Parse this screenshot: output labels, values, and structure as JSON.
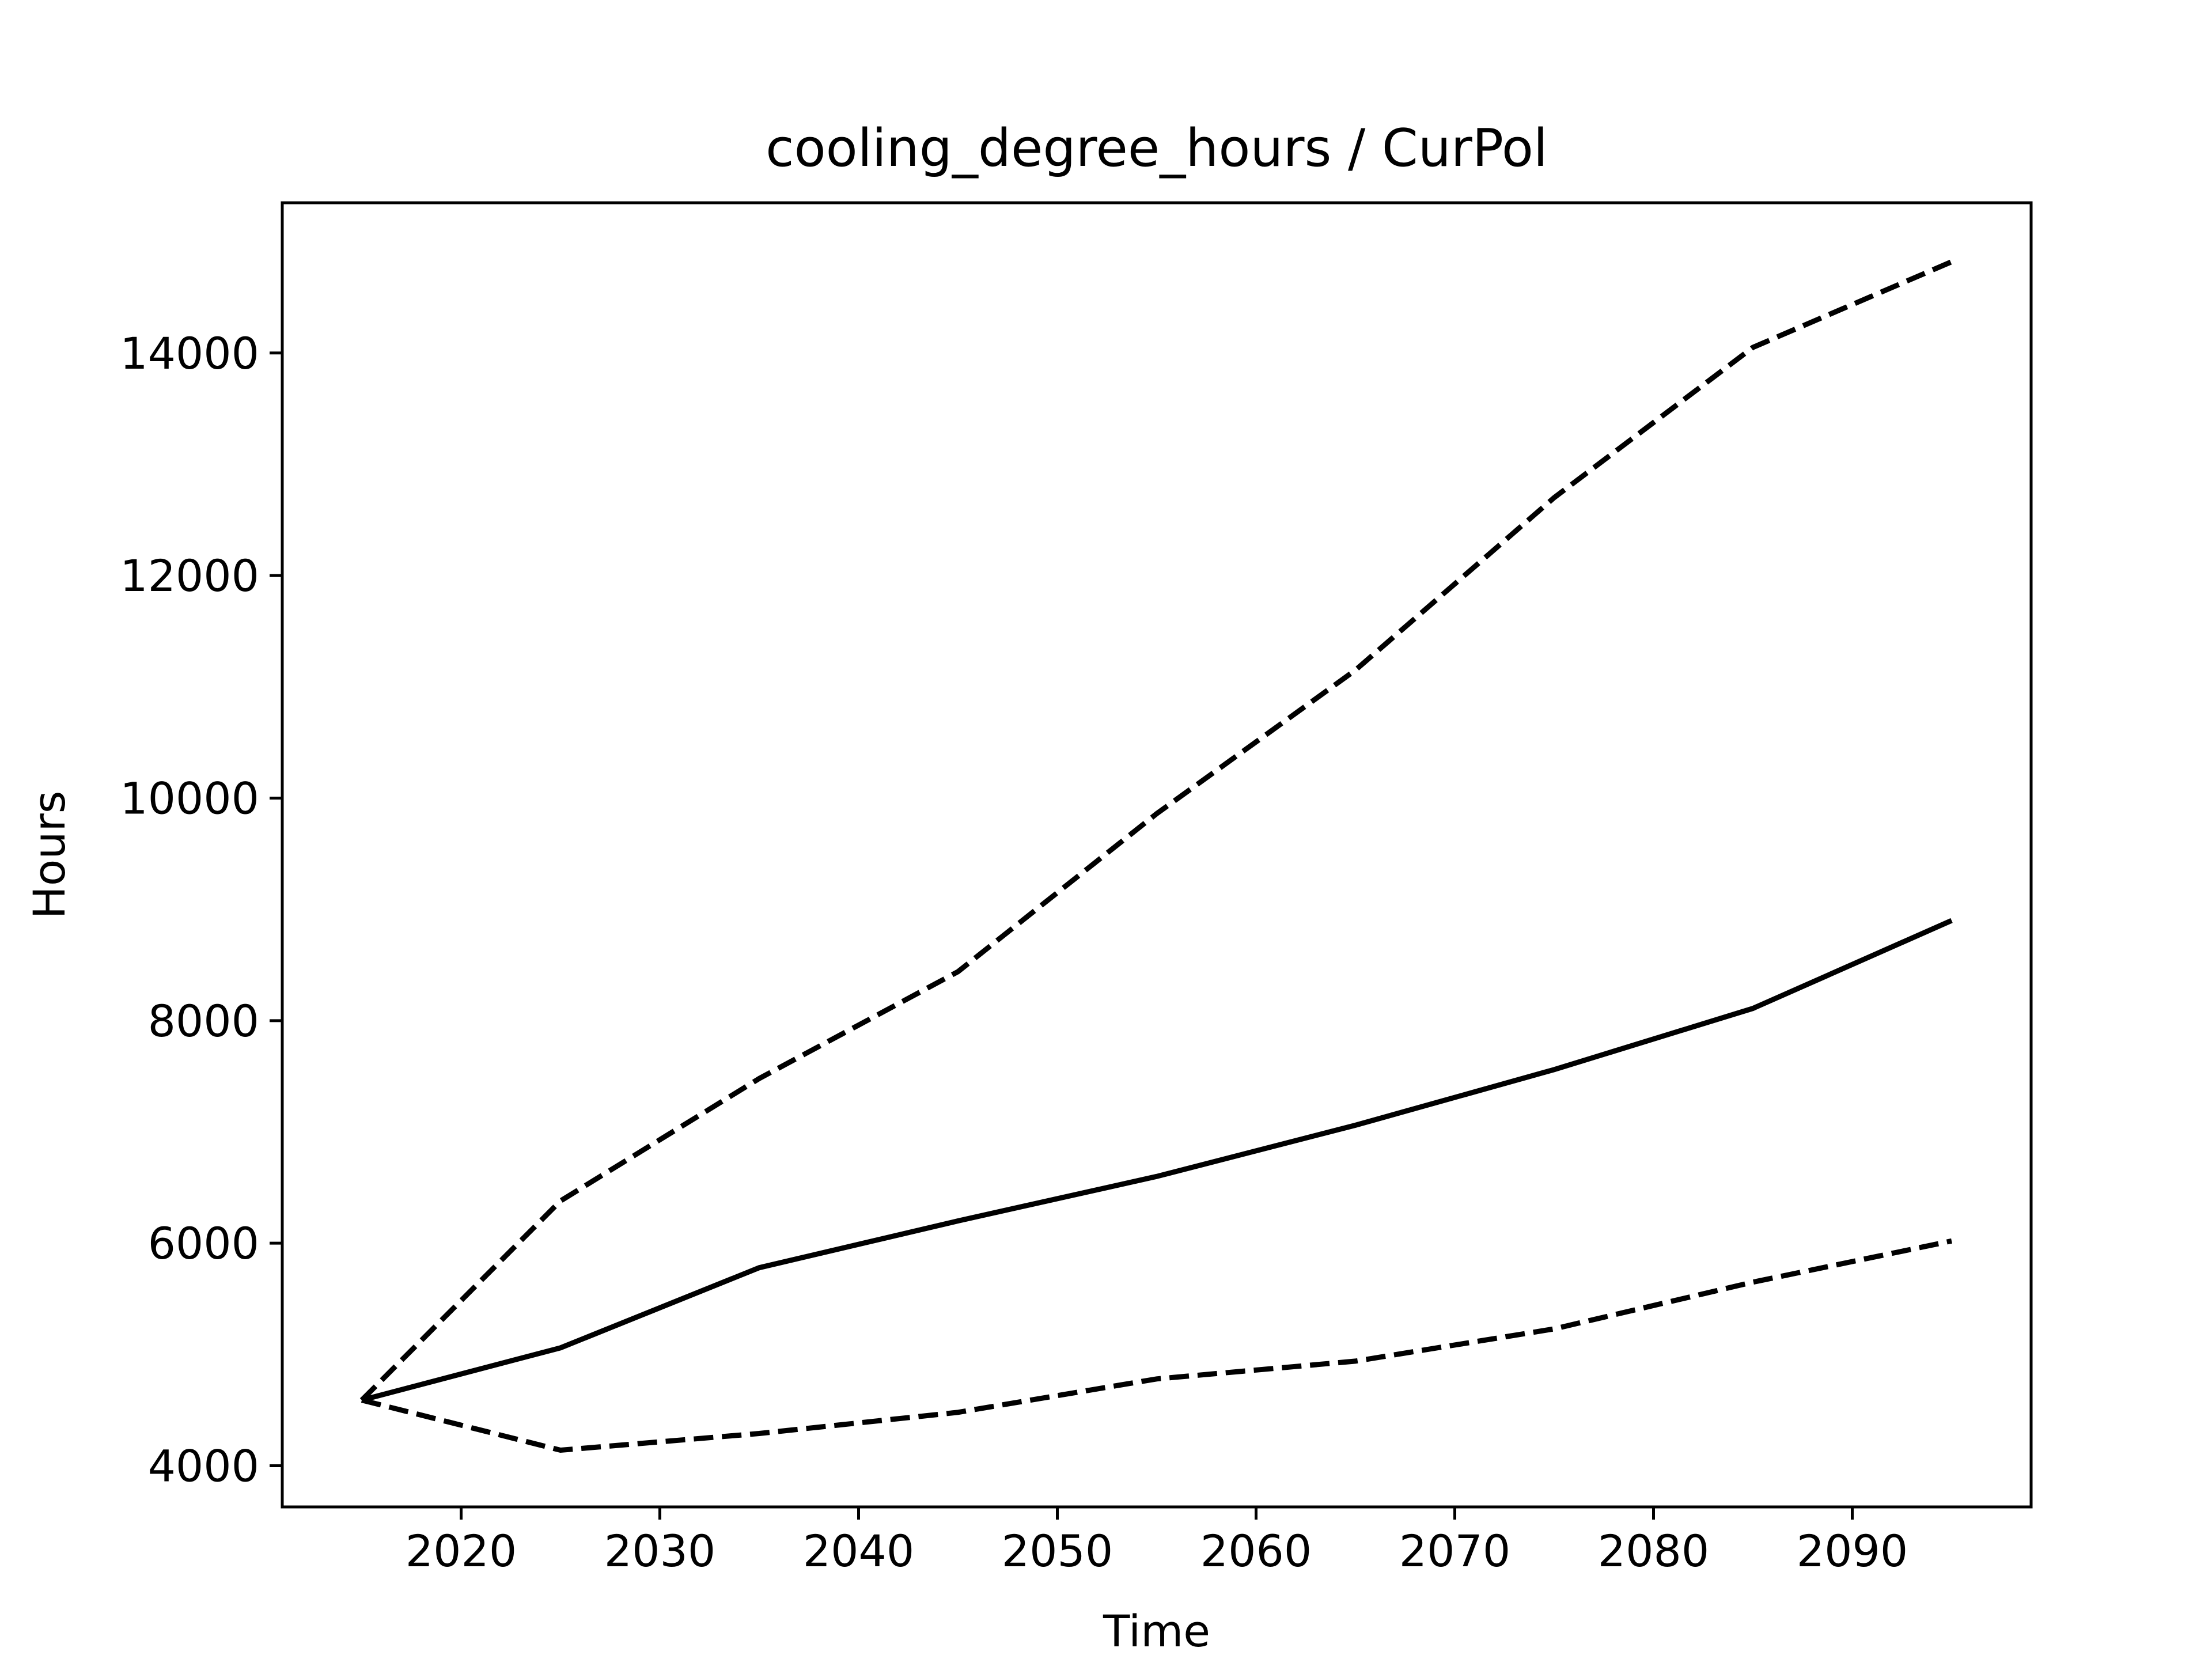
{
  "chart_data": {
    "type": "line",
    "title": "cooling_degree_hours / CurPol",
    "xlabel": "Time",
    "ylabel": "Hours",
    "x": [
      2015,
      2025,
      2035,
      2045,
      2055,
      2065,
      2075,
      2085,
      2095
    ],
    "series": [
      {
        "values": [
          4590,
          5060,
          5780,
          6200,
          6600,
          7060,
          7560,
          8110,
          8900
        ],
        "style": "solid",
        "color": "#000000"
      },
      {
        "values": [
          4590,
          6380,
          7480,
          8440,
          9860,
          11150,
          12700,
          14050,
          14820
        ],
        "style": "dashed",
        "color": "#000000"
      },
      {
        "values": [
          4590,
          4140,
          4290,
          4480,
          4780,
          4940,
          5230,
          5650,
          6020
        ],
        "style": "dashed",
        "color": "#000000"
      }
    ],
    "xticks": [
      2020,
      2030,
      2040,
      2050,
      2060,
      2070,
      2080,
      2090
    ],
    "xtick_labels": [
      "2020",
      "2030",
      "2040",
      "2050",
      "2060",
      "2070",
      "2080",
      "2090"
    ],
    "yticks": [
      4000,
      6000,
      8000,
      10000,
      12000,
      14000
    ],
    "ytick_labels": [
      "4000",
      "6000",
      "8000",
      "10000",
      "12000",
      "14000"
    ],
    "xlim": [
      2011,
      2099
    ],
    "ylim": [
      3630,
      15350
    ],
    "grid": false,
    "legend": "none"
  }
}
